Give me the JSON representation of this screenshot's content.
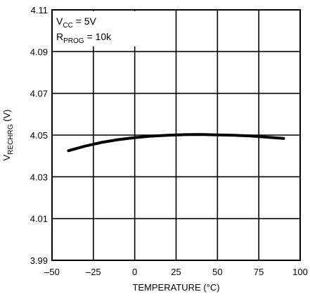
{
  "chart_data": {
    "type": "line",
    "title": "",
    "xlabel": "TEMPERATURE (°C)",
    "ylabel": {
      "main": "V",
      "sub": "RECHRG",
      "unit": " (V)"
    },
    "xlim": [
      -50,
      100
    ],
    "ylim": [
      3.99,
      4.11
    ],
    "xticks": [
      "–50",
      "–25",
      "0",
      "25",
      "50",
      "75",
      "100"
    ],
    "yticks": [
      "4.11",
      "4.09",
      "4.07",
      "4.05",
      "4.03",
      "4.01",
      "3.99"
    ],
    "grid": true,
    "annotations": [
      {
        "main": "V",
        "sub": "CC",
        "rest": " = 5V"
      },
      {
        "main": "R",
        "sub": "PROG",
        "rest": " = 10k"
      }
    ],
    "series": [
      {
        "x": [
          -40,
          -30,
          -20,
          -10,
          0,
          10,
          20,
          30,
          40,
          50,
          60,
          70,
          80,
          90
        ],
        "y": [
          4.0425,
          4.0447,
          4.0465,
          4.0478,
          4.0488,
          4.0495,
          4.0499,
          4.0502,
          4.0503,
          4.0501,
          4.0499,
          4.0496,
          4.049,
          4.0484
        ]
      }
    ]
  }
}
